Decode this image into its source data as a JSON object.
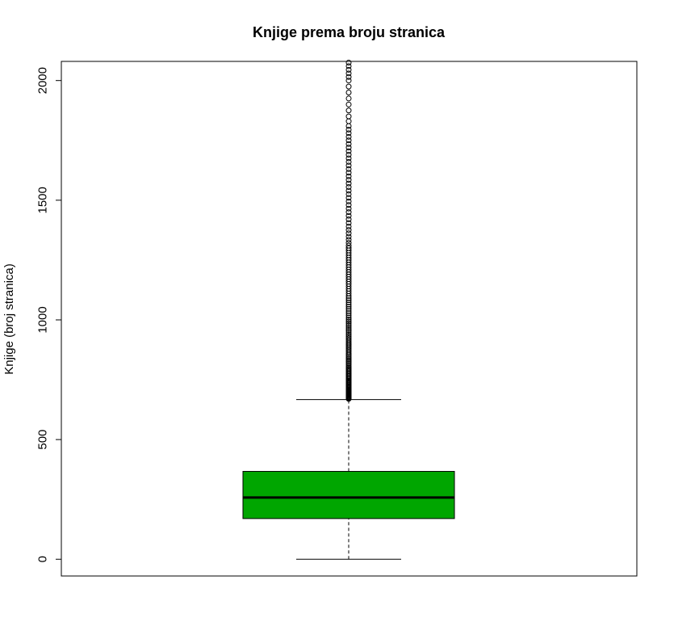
{
  "chart_data": {
    "type": "boxplot",
    "title": "Knjige prema broju stranica",
    "xlabel": "",
    "ylabel": "Knjige (broj stranica)",
    "ylim": [
      -70,
      2080
    ],
    "y_ticks": [
      0,
      500,
      1000,
      1500,
      2000
    ],
    "grid": false,
    "box_color": "#00A600",
    "box": {
      "min": 0,
      "q1": 170,
      "median": 258,
      "q3": 367,
      "whisker_high": 667
    },
    "outliers": [
      670,
      672,
      674,
      676,
      678,
      680,
      683,
      686,
      689,
      692,
      695,
      698,
      701,
      704,
      707,
      710,
      714,
      718,
      722,
      726,
      730,
      734,
      738,
      742,
      746,
      750,
      755,
      760,
      765,
      770,
      775,
      780,
      785,
      790,
      795,
      800,
      806,
      812,
      818,
      824,
      830,
      836,
      842,
      848,
      854,
      860,
      867,
      874,
      881,
      888,
      895,
      902,
      909,
      916,
      923,
      930,
      938,
      946,
      954,
      962,
      970,
      978,
      986,
      994,
      1002,
      1010,
      1019,
      1028,
      1037,
      1046,
      1055,
      1064,
      1073,
      1082,
      1091,
      1100,
      1110,
      1120,
      1130,
      1140,
      1150,
      1160,
      1170,
      1180,
      1190,
      1200,
      1210,
      1220,
      1230,
      1240,
      1250,
      1260,
      1270,
      1280,
      1290,
      1300,
      1310,
      1322,
      1335,
      1348,
      1362,
      1376,
      1390,
      1405,
      1420,
      1435,
      1450,
      1465,
      1480,
      1495,
      1510,
      1525,
      1540,
      1555,
      1570,
      1585,
      1600,
      1615,
      1630,
      1645,
      1660,
      1675,
      1690,
      1705,
      1720,
      1735,
      1750,
      1765,
      1780,
      1795,
      1810,
      1830,
      1850,
      1875,
      1900,
      1925,
      1950,
      1975,
      2000,
      2015,
      2030,
      2045,
      2060,
      2075
    ]
  }
}
